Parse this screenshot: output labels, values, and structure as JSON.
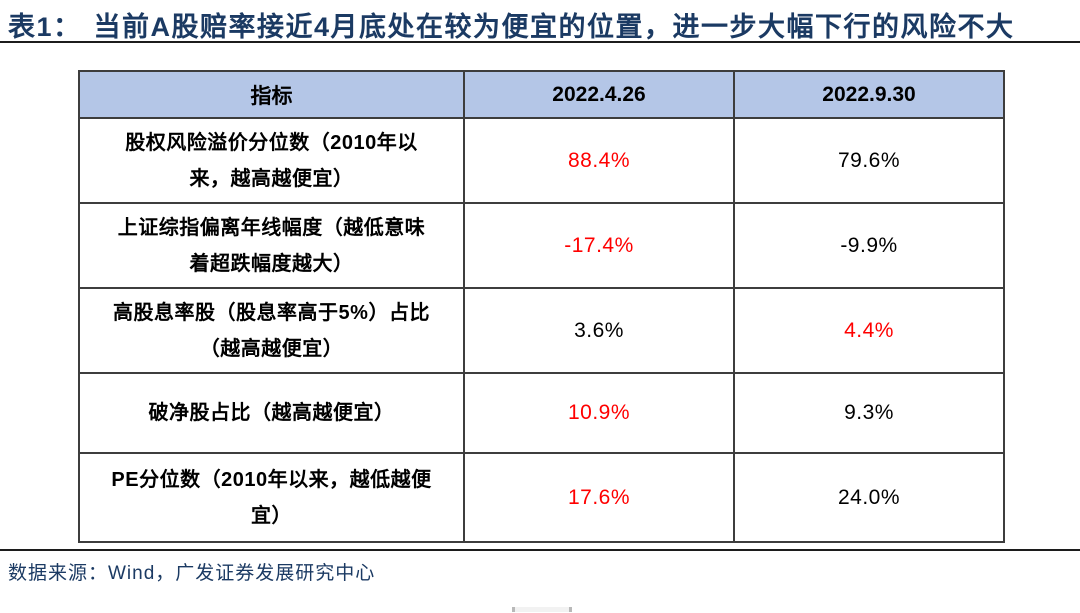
{
  "title": {
    "label": "表1：",
    "text": "当前A股赔率接近4月底处在较为便宜的位置，进一步大幅下行的风险不大"
  },
  "table": {
    "columns": [
      "指标",
      "2022.4.26",
      "2022.9.30"
    ],
    "rows": [
      {
        "indicator": "股权风险溢价分位数（2010年以来，越高越便宜）",
        "v1": "88.4%",
        "v1_color": "#FF0000",
        "v2": "79.6%",
        "v2_color": "#000000"
      },
      {
        "indicator": "上证综指偏离年线幅度（越低意味着超跌幅度越大）",
        "v1": "-17.4%",
        "v1_color": "#FF0000",
        "v2": "-9.9%",
        "v2_color": "#000000"
      },
      {
        "indicator": "高股息率股（股息率高于5%）占比（越高越便宜）",
        "v1": "3.6%",
        "v1_color": "#000000",
        "v2": "4.4%",
        "v2_color": "#FF0000"
      },
      {
        "indicator": "破净股占比（越高越便宜）",
        "v1": "10.9%",
        "v1_color": "#FF0000",
        "v2": "9.3%",
        "v2_color": "#000000"
      },
      {
        "indicator": "PE分位数（2010年以来，越低越便宜）",
        "v1": "17.6%",
        "v1_color": "#FF0000",
        "v2": "24.0%",
        "v2_color": "#000000"
      }
    ]
  },
  "footer": {
    "source": "数据来源：Wind，广发证券发展研究中心"
  },
  "colors": {
    "title_navy": "#1B3A63",
    "header_bg": "#B4C6E7",
    "table_border": "#3D3D3D",
    "highlight_red": "#FF0000",
    "value_black": "#000000"
  }
}
